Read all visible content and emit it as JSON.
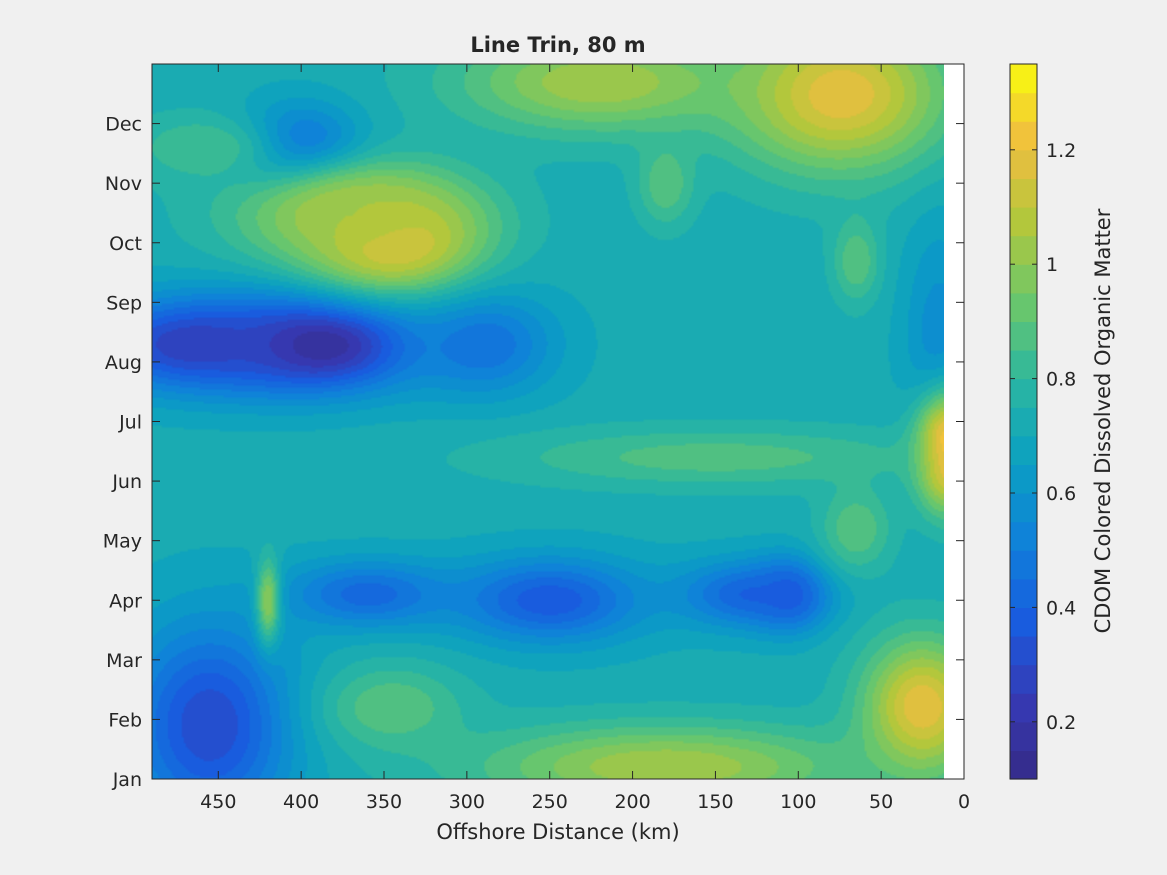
{
  "chart_data": {
    "type": "heatmap",
    "subtype": "filled-contour",
    "title": "Line Trin, 80 m",
    "xlabel": "Offshore Distance (km)",
    "ylabel": "",
    "colorbar_label": "CDOM Colored Dissolved Organic Matter",
    "colormap": "parula",
    "x_reversed": true,
    "xlim": [
      490,
      0
    ],
    "x_ticks": [
      450,
      400,
      350,
      300,
      250,
      200,
      150,
      100,
      50,
      0
    ],
    "x_tick_labels": [
      "450",
      "400",
      "350",
      "300",
      "250",
      "200",
      "150",
      "100",
      "50",
      "0"
    ],
    "data_x_extent": [
      490,
      12
    ],
    "y_ticks": [
      0,
      1,
      2,
      3,
      4,
      5,
      6,
      7,
      8,
      9,
      10,
      11
    ],
    "y_tick_labels": [
      "Jan",
      "Feb",
      "Mar",
      "Apr",
      "May",
      "Jun",
      "Jul",
      "Aug",
      "Sep",
      "Oct",
      "Nov",
      "Dec"
    ],
    "ylim": [
      0,
      12
    ],
    "clim": [
      0.1,
      1.35
    ],
    "colorbar_ticks": [
      0.2,
      0.4,
      0.6,
      0.8,
      1,
      1.2
    ],
    "colorbar_tick_labels": [
      "0.2",
      "0.4",
      "0.6",
      "0.8",
      "1",
      "1.2"
    ],
    "background_level": 0.72,
    "features": [
      {
        "x": 390,
        "month": 7.3,
        "value": 0.12,
        "sx": 42,
        "sy": 0.55
      },
      {
        "x": 465,
        "month": 7.3,
        "value": 0.25,
        "sx": 45,
        "sy": 0.55
      },
      {
        "x": 455,
        "month": 0.9,
        "value": 0.3,
        "sx": 35,
        "sy": 1.2
      },
      {
        "x": 400,
        "month": 10.6,
        "value": 0.4,
        "sx": 25,
        "sy": 0.5
      },
      {
        "x": 290,
        "month": 7.3,
        "value": 0.45,
        "sx": 30,
        "sy": 0.6
      },
      {
        "x": 360,
        "month": 3.1,
        "value": 0.42,
        "sx": 35,
        "sy": 0.4
      },
      {
        "x": 250,
        "month": 3.0,
        "value": 0.36,
        "sx": 40,
        "sy": 0.5
      },
      {
        "x": 130,
        "month": 3.1,
        "value": 0.4,
        "sx": 30,
        "sy": 0.4
      },
      {
        "x": 105,
        "month": 3.1,
        "value": 0.37,
        "sx": 15,
        "sy": 0.4
      },
      {
        "x": 15,
        "month": 7.0,
        "value": 0.55,
        "sx": 15,
        "sy": 1.6
      },
      {
        "x": 345,
        "month": 9.1,
        "value": 1.27,
        "sx": 35,
        "sy": 0.6
      },
      {
        "x": 370,
        "month": 9.5,
        "value": 1.05,
        "sx": 50,
        "sy": 0.6
      },
      {
        "x": 75,
        "month": 11.5,
        "value": 1.2,
        "sx": 45,
        "sy": 0.9
      },
      {
        "x": 220,
        "month": 11.7,
        "value": 1.05,
        "sx": 60,
        "sy": 0.6
      },
      {
        "x": 10,
        "month": 5.5,
        "value": 1.35,
        "sx": 14,
        "sy": 0.7
      },
      {
        "x": 25,
        "month": 1.2,
        "value": 1.2,
        "sx": 25,
        "sy": 0.8
      },
      {
        "x": 180,
        "month": 0.2,
        "value": 1.05,
        "sx": 80,
        "sy": 0.5
      },
      {
        "x": 345,
        "month": 1.2,
        "value": 0.9,
        "sx": 30,
        "sy": 0.5
      },
      {
        "x": 420,
        "month": 3.0,
        "value": 1.0,
        "sx": 5,
        "sy": 0.5
      },
      {
        "x": 150,
        "month": 5.4,
        "value": 0.88,
        "sx": 90,
        "sy": 0.35
      },
      {
        "x": 65,
        "month": 4.2,
        "value": 0.9,
        "sx": 15,
        "sy": 0.5
      },
      {
        "x": 65,
        "month": 8.7,
        "value": 0.9,
        "sx": 10,
        "sy": 0.5
      },
      {
        "x": 180,
        "month": 10.0,
        "value": 0.9,
        "sx": 12,
        "sy": 0.5
      },
      {
        "x": 460,
        "month": 10.6,
        "value": 0.85,
        "sx": 30,
        "sy": 0.4
      }
    ]
  }
}
